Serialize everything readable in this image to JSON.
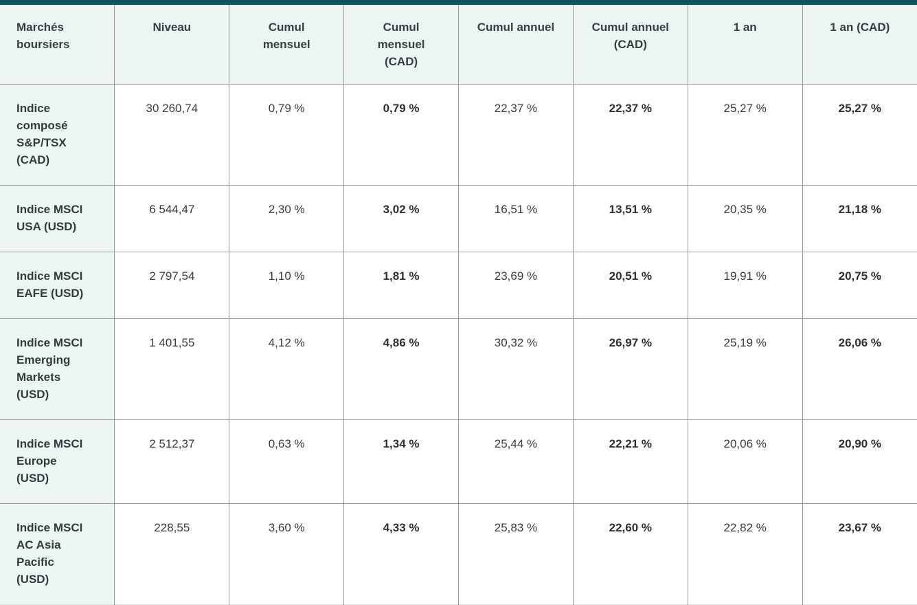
{
  "theme": {
    "accent_teal": "#0e5458",
    "header_bg": "#ecf5f2",
    "row_header_bg": "#ecf5f2",
    "border_gray": "#9a9a9a",
    "text_dark": "#363636",
    "page_bg": "#fbfbfb"
  },
  "table": {
    "title": "Marchés boursiers",
    "columns": [
      "Marchés boursiers",
      "Niveau",
      "Cumul mensuel",
      "Cumul mensuel (CAD)",
      "Cumul annuel",
      "Cumul annuel (CAD)",
      "1 an",
      "1 an (CAD)"
    ],
    "bold_value_columns": [
      2,
      4,
      6
    ],
    "rows": [
      {
        "label": "Indice composé S&P/TSX (CAD)",
        "values": [
          "30 260,74",
          "0,79 %",
          "0,79 %",
          "22,37 %",
          "22,37 %",
          "25,27 %",
          "25,27 %"
        ]
      },
      {
        "label": "Indice MSCI USA (USD)",
        "values": [
          "6 544,47",
          "2,30 %",
          "3,02 %",
          "16,51 %",
          "13,51 %",
          "20,35 %",
          "21,18 %"
        ]
      },
      {
        "label": "Indice MSCI EAFE (USD)",
        "values": [
          "2 797,54",
          "1,10 %",
          "1,81 %",
          "23,69 %",
          "20,51 %",
          "19,91 %",
          "20,75 %"
        ]
      },
      {
        "label": "Indice MSCI Emerging Markets (USD)",
        "values": [
          "1 401,55",
          "4,12 %",
          "4,86 %",
          "30,32 %",
          "26,97 %",
          "25,19 %",
          "26,06 %"
        ]
      },
      {
        "label": "Indice MSCI Europe (USD)",
        "values": [
          "2 512,37",
          "0,63 %",
          "1,34 %",
          "25,44 %",
          "22,21 %",
          "20,06 %",
          "20,90 %"
        ]
      },
      {
        "label": "Indice MSCI AC Asia Pacific (USD)",
        "values": [
          "228,55",
          "3,60 %",
          "4,33 %",
          "25,83 %",
          "22,60 %",
          "22,82 %",
          "23,67 %"
        ]
      }
    ]
  }
}
